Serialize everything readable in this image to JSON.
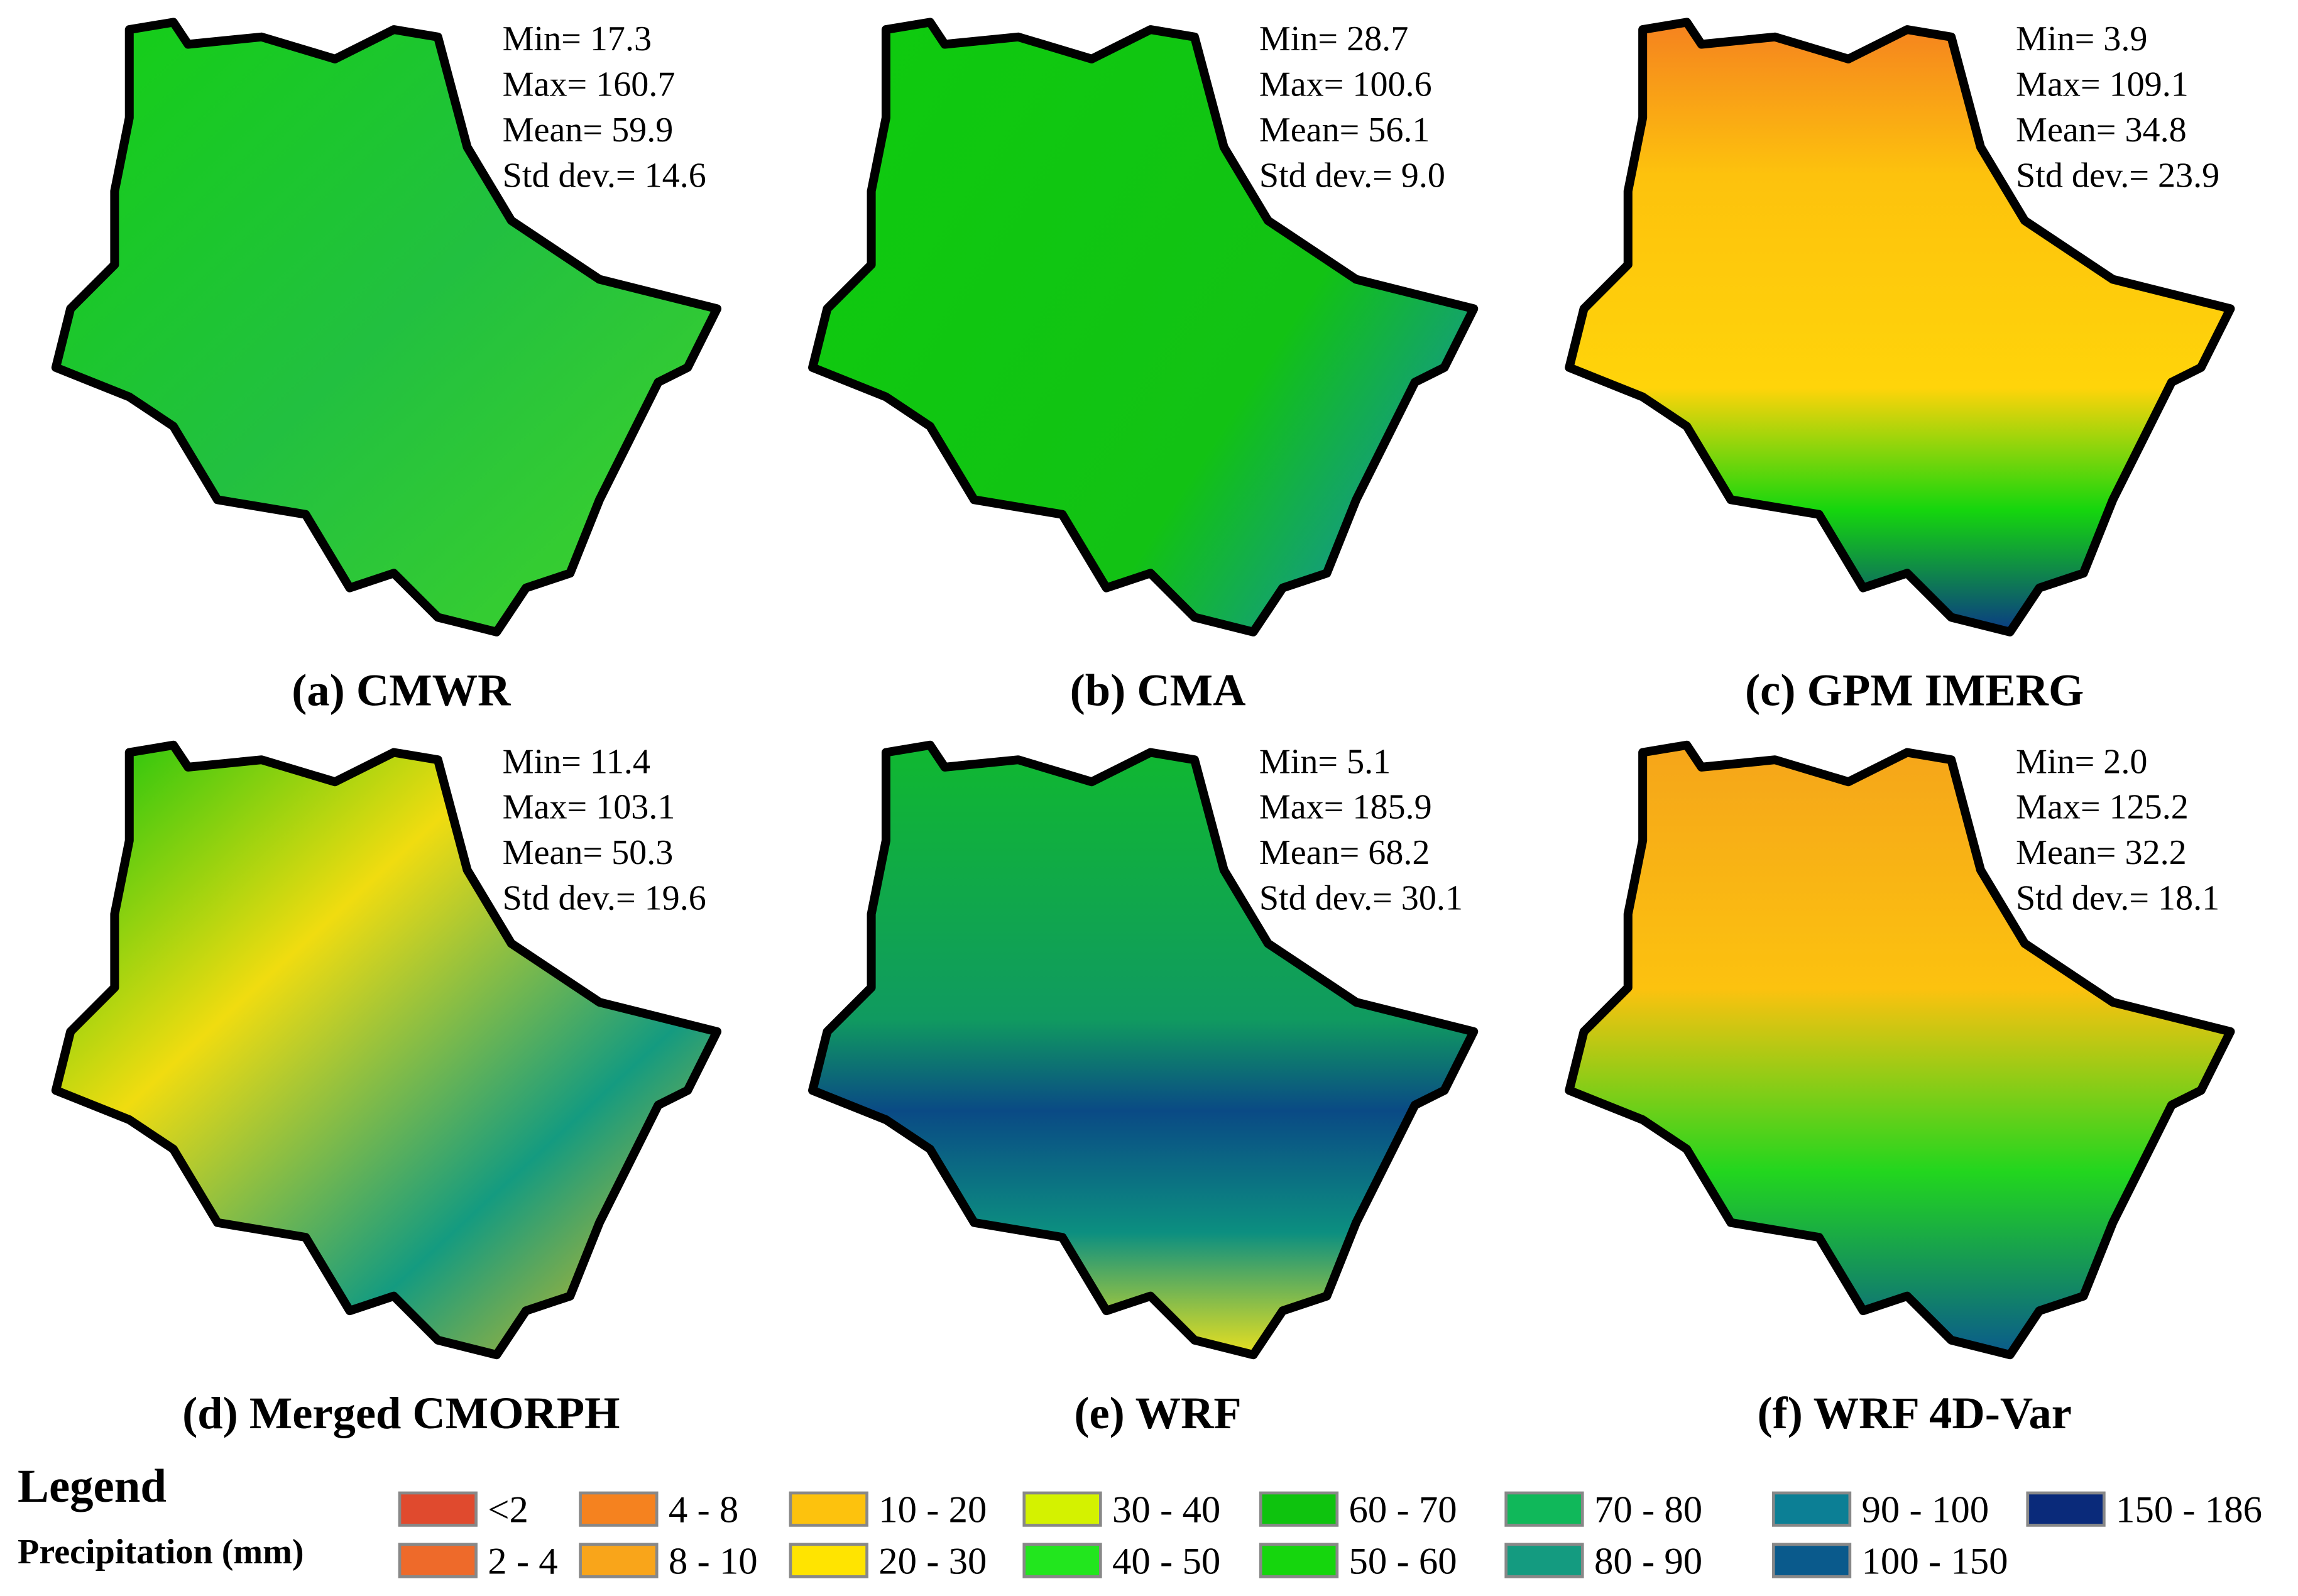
{
  "panels": [
    {
      "caption": "(a) CMWR",
      "stats": [
        "Min= 17.3",
        "Max= 160.7",
        "Mean= 59.9",
        "Std dev.= 14.6"
      ]
    },
    {
      "caption": "(b) CMA",
      "stats": [
        "Min= 28.7",
        "Max= 100.6",
        "Mean= 56.1",
        "Std dev.= 9.0"
      ]
    },
    {
      "caption": "(c) GPM IMERG",
      "stats": [
        "Min= 3.9",
        "Max= 109.1",
        "Mean= 34.8",
        "Std dev.= 23.9"
      ]
    },
    {
      "caption": "(d) Merged CMORPH",
      "stats": [
        "Min= 11.4",
        "Max= 103.1",
        "Mean= 50.3",
        "Std dev.= 19.6"
      ]
    },
    {
      "caption": "(e) WRF",
      "stats": [
        "Min= 5.1",
        "Max= 185.9",
        "Mean= 68.2",
        "Std dev.= 30.1"
      ]
    },
    {
      "caption": "(f) WRF 4D-Var",
      "stats": [
        "Min= 2.0",
        "Max= 125.2",
        "Mean= 32.2",
        "Std dev.= 18.1"
      ]
    }
  ],
  "legend": {
    "title": "Legend",
    "subtitle": "Precipitation (mm)",
    "items": [
      {
        "label": "<2",
        "color": "#e04a2e"
      },
      {
        "label": "4 - 8",
        "color": "#f5821f"
      },
      {
        "label": "10 - 20",
        "color": "#fdc20d"
      },
      {
        "label": "30 - 40",
        "color": "#d4f200"
      },
      {
        "label": "60 - 70",
        "color": "#0ec30e"
      },
      {
        "label": "70 - 80",
        "color": "#10b85a"
      },
      {
        "label": "90 - 100",
        "color": "#0c7f95"
      },
      {
        "label": "150 - 186",
        "color": "#0a2a7a"
      },
      {
        "label": "2 - 4",
        "color": "#ee6a2a"
      },
      {
        "label": "8 - 10",
        "color": "#f9a51a"
      },
      {
        "label": "20 - 30",
        "color": "#ffe400"
      },
      {
        "label": "40 - 50",
        "color": "#22e61e"
      },
      {
        "label": "50 - 60",
        "color": "#15d60d"
      },
      {
        "label": "80 - 90",
        "color": "#149b80"
      },
      {
        "label": "100 - 150",
        "color": "#0a5a8c"
      }
    ]
  }
}
